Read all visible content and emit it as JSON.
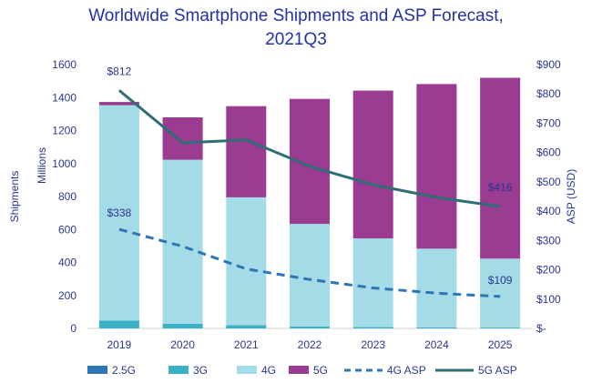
{
  "chart_data": {
    "type": "bar",
    "subtype": "stacked bar with line overlay on secondary axis",
    "title_lines": [
      "Worldwide Smartphone Shipments and ASP Forecast,",
      "2021Q3"
    ],
    "categories": [
      "2019",
      "2020",
      "2021",
      "2022",
      "2023",
      "2024",
      "2025"
    ],
    "y_left": {
      "label": "Shipments",
      "unit_label": "Millions",
      "range": [
        0,
        1600
      ],
      "ticks": [
        "0",
        "200",
        "400",
        "600",
        "800",
        "1000",
        "1200",
        "1400",
        "1600"
      ]
    },
    "y_right": {
      "label": "ASP (USD)",
      "range": [
        0,
        900
      ],
      "ticks": [
        "$-",
        "$100",
        "$200",
        "$300",
        "$400",
        "$500",
        "$600",
        "$700",
        "$800",
        "$900"
      ]
    },
    "bar_series": [
      {
        "name": "2.5G",
        "color": "#2e75b6",
        "values": [
          0,
          0,
          0,
          0,
          0,
          0,
          0
        ]
      },
      {
        "name": "3G",
        "color": "#3bb1c8",
        "values": [
          48,
          28,
          20,
          12,
          8,
          6,
          5
        ]
      },
      {
        "name": "4G",
        "color": "#a3dbe7",
        "values": [
          1305,
          995,
          775,
          622,
          538,
          478,
          418
        ]
      },
      {
        "name": "5G",
        "color": "#9b3b91",
        "values": [
          20,
          257,
          553,
          758,
          896,
          998,
          1097
        ]
      }
    ],
    "line_series": [
      {
        "name": "4G ASP",
        "color": "#2e75b6",
        "dash": true,
        "values": [
          338,
          280,
          203,
          167,
          138,
          120,
          109
        ]
      },
      {
        "name": "5G ASP",
        "color": "#2e6e75",
        "dash": false,
        "values": [
          812,
          633,
          643,
          553,
          490,
          447,
          416
        ]
      }
    ],
    "data_labels": [
      {
        "text": "$812",
        "series": "5G ASP",
        "index": 0
      },
      {
        "text": "$338",
        "series": "4G ASP",
        "index": 0
      },
      {
        "text": "$416",
        "series": "5G ASP",
        "index": 6
      },
      {
        "text": "$109",
        "series": "4G ASP",
        "index": 6
      }
    ],
    "legend": {
      "placement": "bottom",
      "items": [
        "2.5G",
        "3G",
        "4G",
        "5G",
        "4G ASP",
        "5G ASP"
      ]
    },
    "grid": false
  }
}
